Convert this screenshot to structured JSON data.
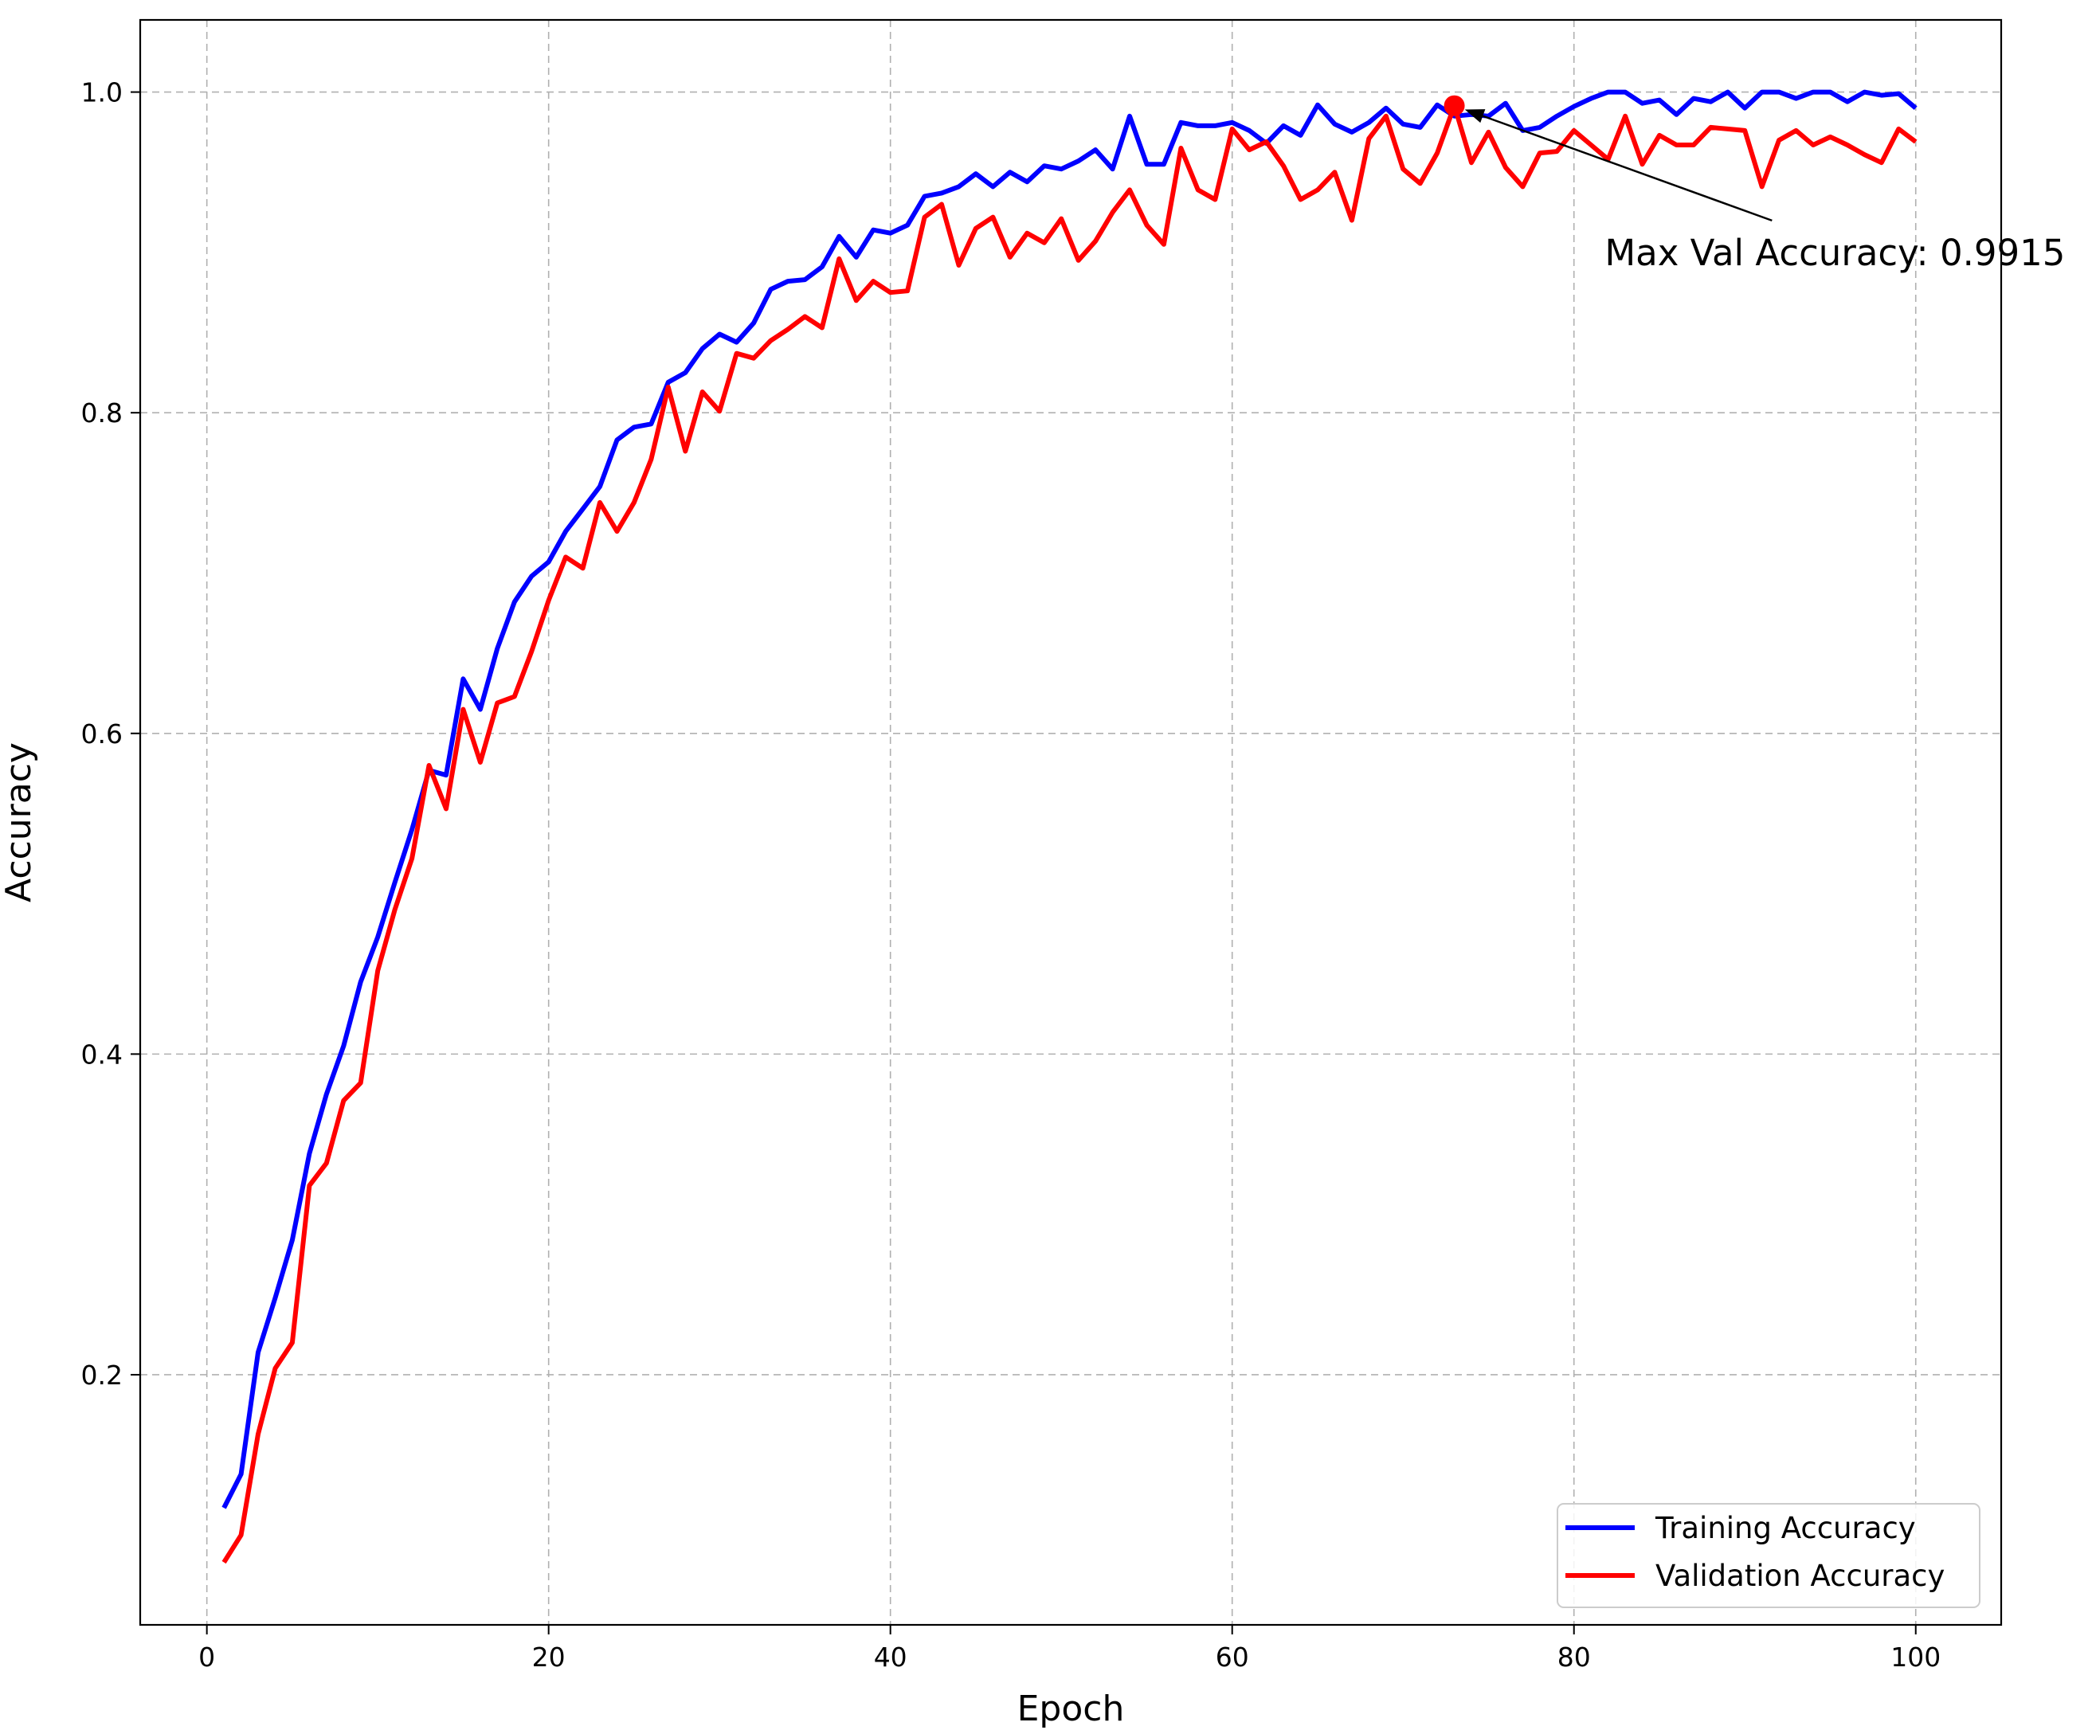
{
  "chart_data": {
    "type": "line",
    "xlabel": "Epoch",
    "ylabel": "Accuracy",
    "xlim": [
      -3.9,
      105
    ],
    "ylim": [
      0.044,
      1.045
    ],
    "xticks": [
      0,
      20,
      40,
      60,
      80,
      100
    ],
    "yticks": [
      0.2,
      0.4,
      0.6,
      0.8,
      1.0
    ],
    "x_tick_labels": [
      "0",
      "20",
      "40",
      "60",
      "80",
      "100"
    ],
    "y_tick_labels": [
      "0.2",
      "0.4",
      "0.6",
      "0.8",
      "1.0"
    ],
    "grid": true,
    "legend_position": "lower-right",
    "series": [
      {
        "name": "Training Accuracy",
        "color": "#0000ff",
        "values": [
          0.117,
          0.138,
          0.214,
          0.248,
          0.284,
          0.338,
          0.375,
          0.405,
          0.445,
          0.473,
          0.507,
          0.54,
          0.577,
          0.574,
          0.634,
          0.615,
          0.653,
          0.682,
          0.698,
          0.707,
          0.726,
          0.74,
          0.754,
          0.783,
          0.791,
          0.793,
          0.819,
          0.825,
          0.84,
          0.849,
          0.844,
          0.856,
          0.877,
          0.882,
          0.883,
          0.891,
          0.91,
          0.897,
          0.914,
          0.912,
          0.917,
          0.935,
          0.937,
          0.941,
          0.949,
          0.941,
          0.95,
          0.944,
          0.954,
          0.952,
          0.957,
          0.964,
          0.952,
          0.985,
          0.955,
          0.955,
          0.981,
          0.979,
          0.979,
          0.981,
          0.976,
          0.968,
          0.979,
          0.973,
          0.992,
          0.98,
          0.975,
          0.981,
          0.99,
          0.98,
          0.978,
          0.992,
          0.985,
          0.986,
          0.985,
          0.993,
          0.976,
          0.978,
          0.985,
          0.991,
          0.996,
          1.0,
          1.0,
          0.993,
          0.995,
          0.986,
          0.996,
          0.994,
          1.0,
          0.99,
          1.0,
          1.0,
          0.996,
          1.0,
          1.0,
          0.994,
          1.0,
          0.998,
          0.999,
          0.99
        ]
      },
      {
        "name": "Validation Accuracy",
        "color": "#ff0000",
        "values": [
          0.083,
          0.1,
          0.163,
          0.204,
          0.22,
          0.318,
          0.332,
          0.371,
          0.382,
          0.452,
          0.49,
          0.522,
          0.58,
          0.553,
          0.615,
          0.582,
          0.619,
          0.623,
          0.651,
          0.683,
          0.71,
          0.703,
          0.744,
          0.726,
          0.744,
          0.771,
          0.816,
          0.776,
          0.813,
          0.801,
          0.837,
          0.834,
          0.845,
          0.852,
          0.86,
          0.853,
          0.896,
          0.87,
          0.882,
          0.875,
          0.876,
          0.922,
          0.93,
          0.892,
          0.915,
          0.922,
          0.897,
          0.912,
          0.906,
          0.921,
          0.895,
          0.907,
          0.925,
          0.939,
          0.917,
          0.905,
          0.965,
          0.939,
          0.933,
          0.977,
          0.964,
          0.969,
          0.954,
          0.933,
          0.939,
          0.95,
          0.92,
          0.971,
          0.985,
          0.952,
          0.943,
          0.962,
          0.9915,
          0.956,
          0.975,
          0.953,
          0.941,
          0.962,
          0.963,
          0.976,
          0.967,
          0.958,
          0.985,
          0.955,
          0.973,
          0.967,
          0.967,
          0.978,
          0.977,
          0.976,
          0.941,
          0.97,
          0.976,
          0.967,
          0.972,
          0.967,
          0.961,
          0.956,
          0.977,
          0.969
        ]
      }
    ],
    "annotation": {
      "text": "Max Val Accuracy: 0.9915",
      "point": {
        "x": 73,
        "y": 0.9915
      },
      "text_anchor": {
        "x": 81.8,
        "y": 0.9
      },
      "marker_color": "#ff0000"
    }
  }
}
